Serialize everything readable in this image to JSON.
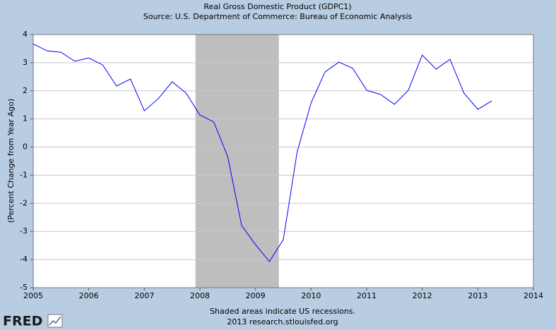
{
  "chart_data": {
    "type": "line",
    "title": "Real Gross Domestic Product (GDPC1)",
    "subtitle": "Source: U.S. Department of Commerce: Bureau of Economic Analysis",
    "y_label": "(Percent Change from Year Ago)",
    "notes": [
      "Shaded areas indicate US recessions.",
      "2013 research.stlouisfed.org"
    ],
    "logo": "FRED",
    "x": [
      2005,
      2005.25,
      2005.5,
      2005.75,
      2006,
      2006.25,
      2006.5,
      2006.75,
      2007,
      2007.25,
      2007.5,
      2007.75,
      2008,
      2008.25,
      2008.5,
      2008.75,
      2009,
      2009.25,
      2009.5,
      2009.75,
      2010,
      2010.25,
      2010.5,
      2010.75,
      2011,
      2011.25,
      2011.5,
      2011.75,
      2012,
      2012.25,
      2012.5,
      2012.75,
      2013,
      2013.25
    ],
    "values": [
      3.67,
      3.42,
      3.37,
      3.05,
      3.17,
      2.92,
      2.17,
      2.42,
      1.29,
      1.72,
      2.32,
      1.92,
      1.14,
      0.89,
      -0.34,
      -2.79,
      -3.47,
      -4.07,
      -3.29,
      -0.16,
      1.57,
      2.67,
      3.02,
      2.8,
      2.02,
      1.87,
      1.52,
      2.02,
      3.27,
      2.77,
      3.12,
      1.92,
      1.34,
      1.64
    ],
    "color": "#0000ff",
    "recessions": [
      [
        2007.92,
        2009.42
      ]
    ],
    "recession_color": "#bebebe",
    "xlim": [
      2005,
      2014
    ],
    "xticks": [
      2005,
      2006,
      2007,
      2008,
      2009,
      2010,
      2011,
      2012,
      2013,
      2014
    ],
    "ylim": [
      -5,
      4
    ],
    "yticks": [
      -5,
      -4,
      -3,
      -2,
      -1,
      0,
      1,
      2,
      3,
      4
    ],
    "grid": "y"
  }
}
